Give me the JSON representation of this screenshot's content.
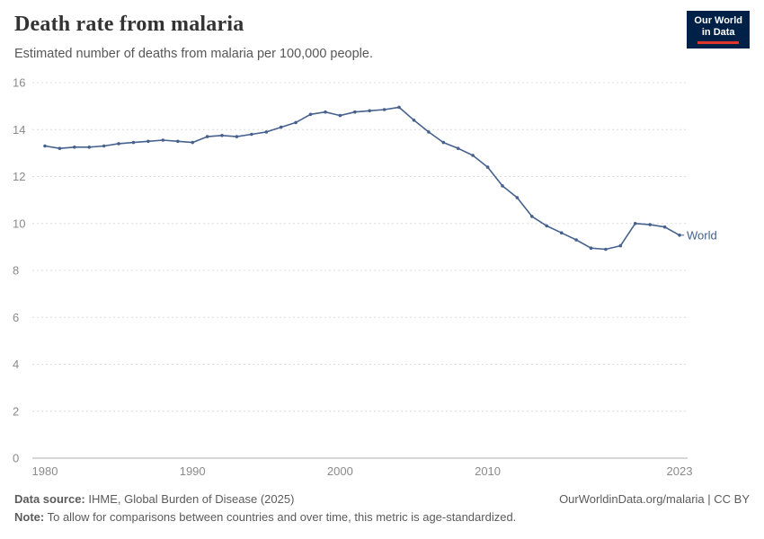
{
  "header": {
    "title": "Death rate from malaria",
    "subtitle": "Estimated number of deaths from malaria per 100,000 people.",
    "logo": {
      "line1": "Our World",
      "line2": "in Data",
      "bg_color": "#002147",
      "accent_color": "#e0362c"
    }
  },
  "chart_data": {
    "type": "line",
    "title": "Death rate from malaria",
    "subtitle": "Estimated number of deaths from malaria per 100,000 people.",
    "xlabel": "",
    "ylabel": "",
    "xlim": [
      1980,
      2023
    ],
    "ylim": [
      0,
      16
    ],
    "yticks": [
      0,
      2,
      4,
      6,
      8,
      10,
      12,
      14,
      16
    ],
    "xticks": [
      1980,
      1990,
      2000,
      2010,
      2023
    ],
    "grid": "horizontal-dashed",
    "legend_position": "end-of-line-label",
    "series": [
      {
        "name": "World",
        "color": "#46618e",
        "x": [
          1980,
          1981,
          1982,
          1983,
          1984,
          1985,
          1986,
          1987,
          1988,
          1989,
          1990,
          1991,
          1992,
          1993,
          1994,
          1995,
          1996,
          1997,
          1998,
          1999,
          2000,
          2001,
          2002,
          2003,
          2004,
          2005,
          2006,
          2007,
          2008,
          2009,
          2010,
          2011,
          2012,
          2013,
          2014,
          2015,
          2016,
          2017,
          2018,
          2019,
          2020,
          2021,
          2022,
          2023
        ],
        "values": [
          13.3,
          13.2,
          13.25,
          13.25,
          13.3,
          13.4,
          13.45,
          13.5,
          13.55,
          13.5,
          13.45,
          13.7,
          13.75,
          13.7,
          13.8,
          13.9,
          14.1,
          14.3,
          14.65,
          14.75,
          14.6,
          14.75,
          14.8,
          14.85,
          14.95,
          14.4,
          13.9,
          13.45,
          13.2,
          12.9,
          12.4,
          11.6,
          11.1,
          10.3,
          9.9,
          9.6,
          9.3,
          8.95,
          8.9,
          9.05,
          10.0,
          9.95,
          9.85,
          9.5
        ]
      }
    ]
  },
  "footer": {
    "source_label": "Data source:",
    "source_text": " IHME, Global Burden of Disease (2025)",
    "right_text": "OurWorldinData.org/malaria | CC BY",
    "note_label": "Note:",
    "note_text": " To allow for comparisons between countries and over time, this metric is age-standardized."
  }
}
